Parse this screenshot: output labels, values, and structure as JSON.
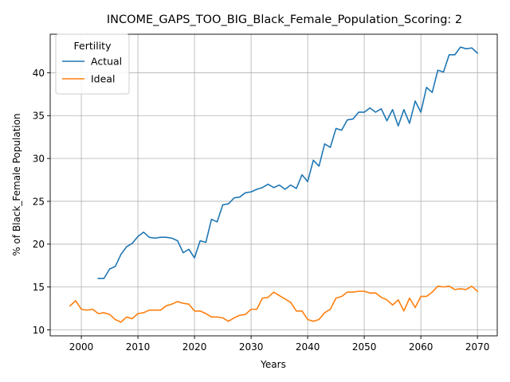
{
  "chart_data": {
    "type": "line",
    "title": "INCOME_GAPS_TOO_BIG_Black_Female_Population_Scoring: 2",
    "xlabel": "Years",
    "ylabel": "% of Black_Female Population",
    "xlim": [
      1994.5,
      2073.5
    ],
    "ylim": [
      9.3,
      44.5
    ],
    "xticks": [
      2000,
      2010,
      2020,
      2030,
      2040,
      2050,
      2060,
      2070
    ],
    "yticks": [
      10,
      15,
      20,
      25,
      30,
      35,
      40
    ],
    "grid": true,
    "legend": {
      "title": "Fertility",
      "position": "top-left"
    },
    "series": [
      {
        "name": "Actual",
        "color": "#1f77b4",
        "x": [
          2003,
          2004,
          2005,
          2006,
          2007,
          2008,
          2009,
          2010,
          2011,
          2012,
          2013,
          2014,
          2015,
          2016,
          2017,
          2018,
          2019,
          2020,
          2021,
          2022,
          2023,
          2024,
          2025,
          2026,
          2027,
          2028,
          2029,
          2030,
          2031,
          2032,
          2033,
          2034,
          2035,
          2036,
          2037,
          2038,
          2039,
          2040,
          2041,
          2042,
          2043,
          2044,
          2045,
          2046,
          2047,
          2048,
          2049,
          2050,
          2051,
          2052,
          2053,
          2054,
          2055,
          2056,
          2057,
          2058,
          2059,
          2060,
          2061,
          2062,
          2063,
          2064,
          2065,
          2066,
          2067,
          2068,
          2069,
          2070
        ],
        "y": [
          16.0,
          16.0,
          17.1,
          17.4,
          18.8,
          19.7,
          20.1,
          20.9,
          21.4,
          20.8,
          20.7,
          20.8,
          20.8,
          20.7,
          20.4,
          19.0,
          19.4,
          18.4,
          20.4,
          20.2,
          22.9,
          22.6,
          24.6,
          24.7,
          25.4,
          25.5,
          26.0,
          26.1,
          26.4,
          26.6,
          27.0,
          26.6,
          26.9,
          26.4,
          26.9,
          26.5,
          28.1,
          27.3,
          29.8,
          29.1,
          31.7,
          31.3,
          33.5,
          33.3,
          34.5,
          34.6,
          35.4,
          35.4,
          35.9,
          35.4,
          35.8,
          34.4,
          35.7,
          33.8,
          35.7,
          34.1,
          36.7,
          35.4,
          38.3,
          37.7,
          40.3,
          40.1,
          42.1,
          42.1,
          43.0,
          42.8,
          42.9,
          42.3
        ]
      },
      {
        "name": "Ideal",
        "color": "#ff7f0e",
        "x": [
          1998,
          1999,
          2000,
          2001,
          2002,
          2003,
          2004,
          2005,
          2006,
          2007,
          2008,
          2009,
          2010,
          2011,
          2012,
          2013,
          2014,
          2015,
          2016,
          2017,
          2018,
          2019,
          2020,
          2021,
          2022,
          2023,
          2024,
          2025,
          2026,
          2027,
          2028,
          2029,
          2030,
          2031,
          2032,
          2033,
          2034,
          2035,
          2036,
          2037,
          2038,
          2039,
          2040,
          2041,
          2042,
          2043,
          2044,
          2045,
          2046,
          2047,
          2048,
          2049,
          2050,
          2051,
          2052,
          2053,
          2054,
          2055,
          2056,
          2057,
          2058,
          2059,
          2060,
          2061,
          2062,
          2063,
          2064,
          2065,
          2066,
          2067,
          2068,
          2069,
          2070
        ],
        "y": [
          12.8,
          13.4,
          12.4,
          12.3,
          12.4,
          11.9,
          12.0,
          11.8,
          11.2,
          10.9,
          11.5,
          11.3,
          11.9,
          12.0,
          12.3,
          12.3,
          12.3,
          12.8,
          13.0,
          13.3,
          13.1,
          13.0,
          12.2,
          12.2,
          11.9,
          11.5,
          11.5,
          11.4,
          11.0,
          11.4,
          11.7,
          11.8,
          12.4,
          12.4,
          13.7,
          13.8,
          14.4,
          14.0,
          13.6,
          13.2,
          12.2,
          12.2,
          11.2,
          11.0,
          11.2,
          12.0,
          12.4,
          13.7,
          13.9,
          14.4,
          14.4,
          14.5,
          14.5,
          14.3,
          14.3,
          13.8,
          13.5,
          12.9,
          13.5,
          12.2,
          13.7,
          12.6,
          13.9,
          13.9,
          14.4,
          15.1,
          15.0,
          15.1,
          14.7,
          14.8,
          14.7,
          15.1,
          14.5
        ]
      }
    ]
  }
}
